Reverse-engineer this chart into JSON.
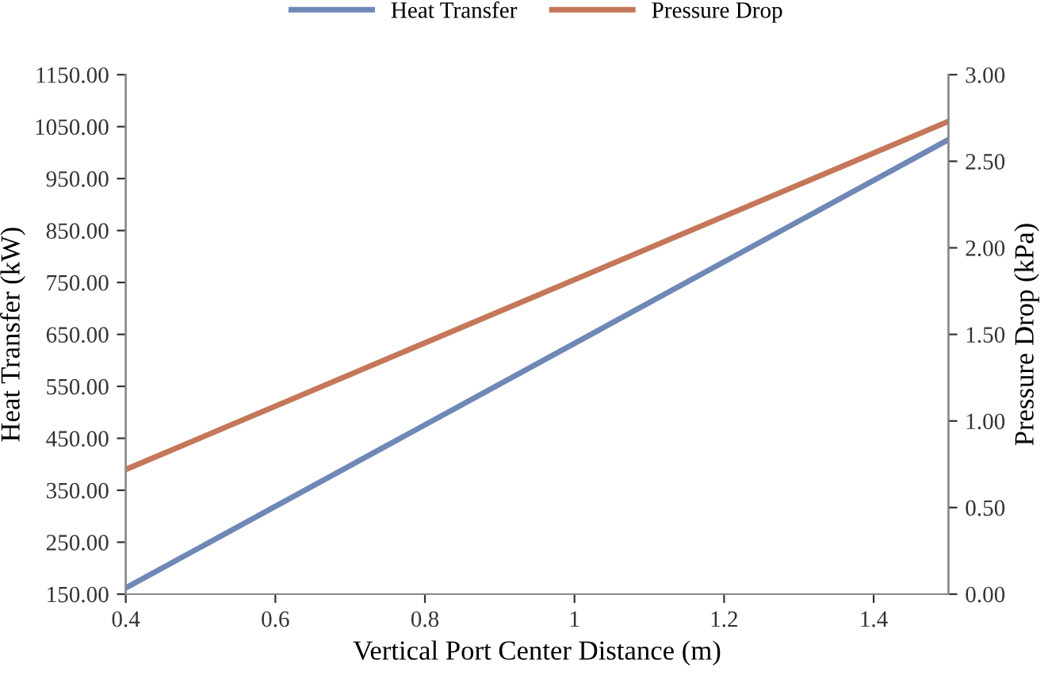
{
  "chart_data": {
    "type": "line",
    "xlabel": "Vertical Port Center Distance (m)",
    "ylabel": "Heat Transfer (kW)",
    "y2label": "Pressure Drop (kPa)",
    "x": [
      0.4,
      1.5
    ],
    "series": [
      {
        "name": "Heat Transfer",
        "color": "#6f88b6",
        "values": [
          162,
          1025
        ]
      },
      {
        "name": "Pressure Drop",
        "color": "#c5775a",
        "values": [
          0.72,
          2.73
        ],
        "axis": "y2"
      }
    ],
    "xlim": [
      0.4,
      1.5
    ],
    "xticks": [
      0.4,
      0.6,
      0.8,
      1,
      1.2,
      1.4
    ],
    "ylim": [
      150,
      1150
    ],
    "yticks": [
      {
        "value": 150,
        "label": "150.00"
      },
      {
        "value": 250,
        "label": "250.00"
      },
      {
        "value": 350,
        "label": "350.00"
      },
      {
        "value": 450,
        "label": "450.00"
      },
      {
        "value": 550,
        "label": "550.00"
      },
      {
        "value": 650,
        "label": "650.00"
      },
      {
        "value": 750,
        "label": "750.00"
      },
      {
        "value": 850,
        "label": "850.00"
      },
      {
        "value": 950,
        "label": "950.00"
      },
      {
        "value": 1050,
        "label": "1050.00"
      },
      {
        "value": 1150,
        "label": "1150.00"
      }
    ],
    "y2lim": [
      0,
      3
    ],
    "y2ticks": [
      {
        "value": 0,
        "label": "0.00"
      },
      {
        "value": 0.5,
        "label": "0.50"
      },
      {
        "value": 1,
        "label": "1.00"
      },
      {
        "value": 1.5,
        "label": "1.50"
      },
      {
        "value": 2,
        "label": "2.00"
      },
      {
        "value": 2.5,
        "label": "2.50"
      },
      {
        "value": 3,
        "label": "3.00"
      }
    ],
    "legend": "top",
    "grid": false
  }
}
